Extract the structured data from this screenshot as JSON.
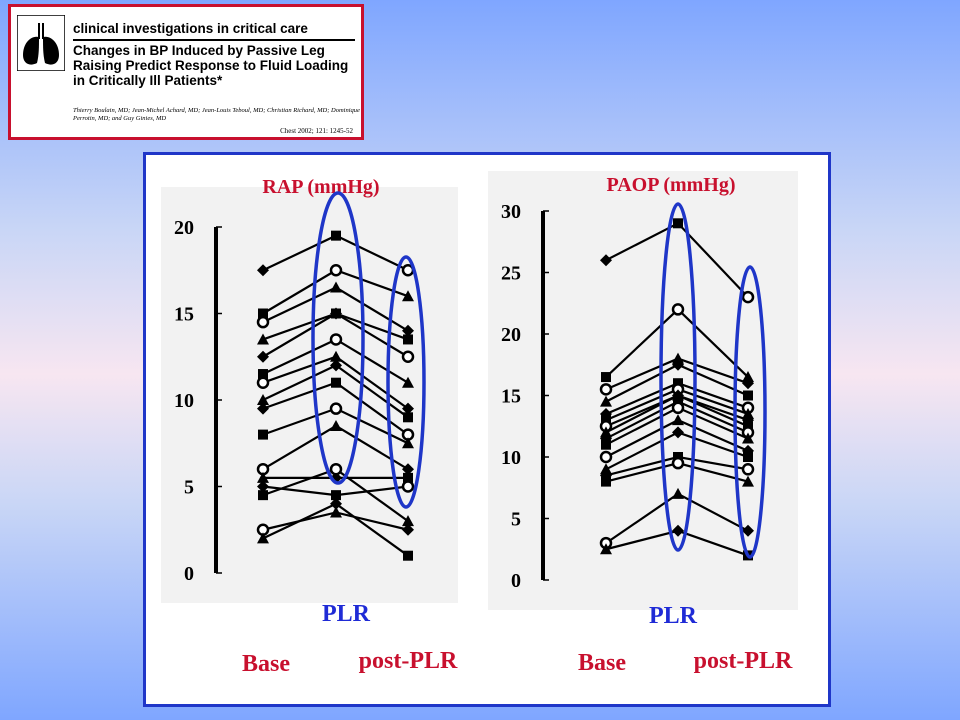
{
  "citation": {
    "header": "clinical investigations in critical care",
    "title": "Changes in BP Induced by Passive Leg Raising Predict Response to Fluid Loading in Critically Ill Patients*",
    "authors": "Thierry Boulain, MD; Jean-Michel Achard, MD; Jean-Louis Teboul, MD; Christian Richard, MD; Dominique Perrotin, MD; and Guy Ginies, MD",
    "reference": "Chest 2002; 121: 1245-52",
    "logo_icon": "lungs-icon"
  },
  "colors": {
    "title_red": "#c8102e",
    "label_blue": "#1f2bd6",
    "ellipse_blue": "#1f36c8",
    "panel_border": "#1f36c8",
    "citation_border": "#c8102e"
  },
  "chart_data": [
    {
      "type": "line",
      "title": "RAP (mmHg)",
      "x": [
        "Base",
        "PLR",
        "post-PLR"
      ],
      "ylim": [
        0,
        20
      ],
      "yticks": [
        0,
        5,
        10,
        15,
        20
      ],
      "ellipses_around": [
        "PLR",
        "post-PLR"
      ],
      "grid": false,
      "series": [
        {
          "values": [
            17.5,
            19.5,
            17.5
          ]
        },
        {
          "values": [
            15,
            17.5,
            16
          ]
        },
        {
          "values": [
            14.5,
            16.5,
            14
          ]
        },
        {
          "values": [
            13.5,
            15,
            13.5
          ]
        },
        {
          "values": [
            12.5,
            15,
            12.5
          ]
        },
        {
          "values": [
            11.5,
            13.5,
            11
          ]
        },
        {
          "values": [
            11,
            12.5,
            9.5
          ]
        },
        {
          "values": [
            10,
            12,
            9
          ]
        },
        {
          "values": [
            9.5,
            11,
            8
          ]
        },
        {
          "values": [
            8,
            9.5,
            7.5
          ]
        },
        {
          "values": [
            6,
            8.5,
            6
          ]
        },
        {
          "values": [
            5.5,
            5.5,
            5.5
          ]
        },
        {
          "values": [
            5,
            4.5,
            5
          ]
        },
        {
          "values": [
            4.5,
            6,
            3
          ]
        },
        {
          "values": [
            2.5,
            3.5,
            2.5
          ]
        },
        {
          "values": [
            2,
            4,
            1
          ]
        }
      ]
    },
    {
      "type": "line",
      "title": "PAOP (mmHg)",
      "x": [
        "Base",
        "PLR",
        "post-PLR"
      ],
      "ylim": [
        0,
        30
      ],
      "yticks": [
        0,
        5,
        10,
        15,
        20,
        25,
        30
      ],
      "ellipses_around": [
        "PLR",
        "post-PLR"
      ],
      "grid": false,
      "series": [
        {
          "values": [
            26,
            29,
            23
          ]
        },
        {
          "values": [
            16.5,
            22,
            16.5
          ]
        },
        {
          "values": [
            15.5,
            18,
            16
          ]
        },
        {
          "values": [
            14.5,
            17.5,
            15
          ]
        },
        {
          "values": [
            13.5,
            16,
            14
          ]
        },
        {
          "values": [
            13,
            15.5,
            13.5
          ]
        },
        {
          "values": [
            12.5,
            15,
            13
          ]
        },
        {
          "values": [
            12,
            15,
            12.5
          ]
        },
        {
          "values": [
            11.5,
            14.5,
            12
          ]
        },
        {
          "values": [
            11,
            14,
            11.5
          ]
        },
        {
          "values": [
            10,
            13,
            10.5
          ]
        },
        {
          "values": [
            9,
            12,
            10
          ]
        },
        {
          "values": [
            8.5,
            10,
            9
          ]
        },
        {
          "values": [
            8,
            9.5,
            8
          ]
        },
        {
          "values": [
            3,
            7,
            4
          ]
        },
        {
          "values": [
            2.5,
            4,
            2
          ]
        }
      ]
    }
  ]
}
